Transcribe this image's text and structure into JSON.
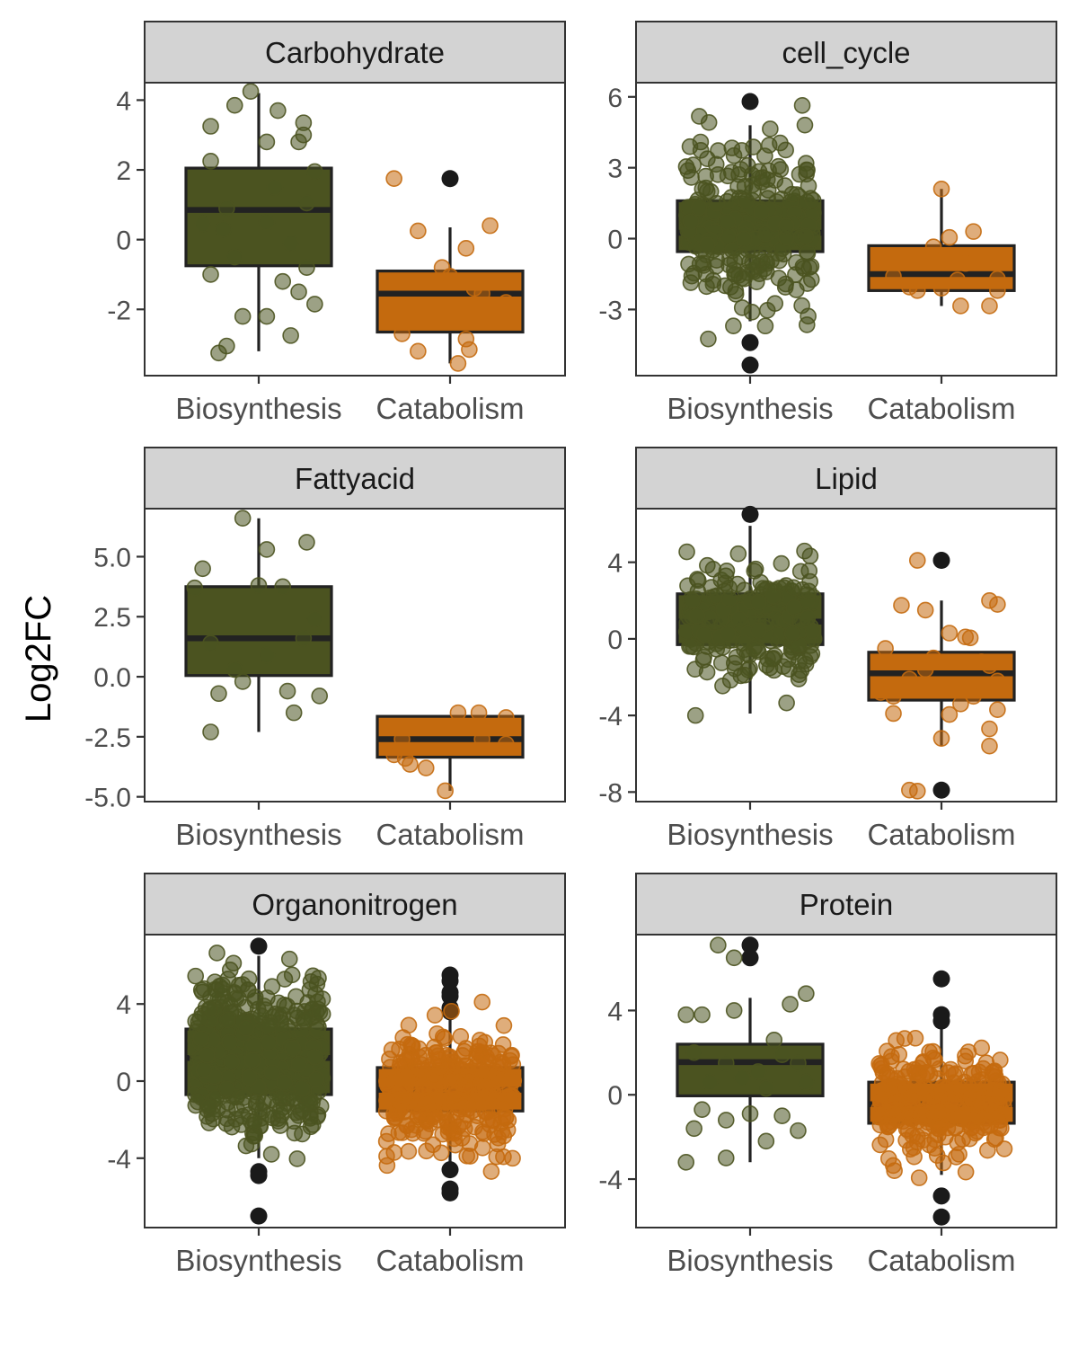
{
  "chart_data": {
    "type": "boxplot",
    "ylabel": "Log2FC",
    "categories": [
      "Biosynthesis",
      "Catabolism"
    ],
    "colors": {
      "Biosynthesis": "#4b5320",
      "Catabolism": "#c46a0e"
    },
    "point_alpha": 0.55,
    "panels": [
      {
        "title": "Carbohydrate",
        "ylim": [
          -3.9,
          4.5
        ],
        "yticks": [
          -2,
          0,
          2,
          4
        ],
        "ytick_labels": [
          "-2",
          "0",
          "2",
          "4"
        ],
        "boxes": [
          {
            "category": "Biosynthesis",
            "lower_whisker": -3.2,
            "q1": -0.75,
            "median": 0.85,
            "q3": 2.05,
            "upper_whisker": 4.2,
            "outliers": [],
            "points": [
              [
                -0.15,
                3.85
              ],
              [
                -0.3,
                3.25
              ],
              [
                0.12,
                3.7
              ],
              [
                0.25,
                2.8
              ],
              [
                -0.05,
                4.25
              ],
              [
                0.28,
                3.35
              ],
              [
                -0.3,
                2.25
              ],
              [
                0.05,
                2.8
              ],
              [
                -0.2,
                0.9
              ],
              [
                0.3,
                1.05
              ],
              [
                0.05,
                0.5
              ],
              [
                -0.35,
                0.45
              ],
              [
                0.2,
                -0.1
              ],
              [
                0.3,
                -0.8
              ],
              [
                -0.3,
                -1.0
              ],
              [
                0.15,
                -1.2
              ],
              [
                -0.1,
                -2.2
              ],
              [
                0.25,
                -1.5
              ],
              [
                0.35,
                -1.85
              ],
              [
                -0.25,
                -3.25
              ],
              [
                -0.2,
                -3.05
              ],
              [
                0.05,
                -2.2
              ],
              [
                0.2,
                -2.75
              ],
              [
                0.35,
                1.95
              ],
              [
                0.1,
                1.5
              ],
              [
                -0.15,
                -0.5
              ],
              [
                0.28,
                3.0
              ],
              [
                -0.22,
                0.3
              ]
            ]
          },
          {
            "category": "Catabolism",
            "lower_whisker": -3.55,
            "q1": -2.65,
            "median": -1.55,
            "q3": -0.9,
            "upper_whisker": 0.35,
            "outliers": [
              1.75
            ],
            "points": [
              [
                -0.35,
                1.75
              ],
              [
                -0.2,
                0.25
              ],
              [
                0.25,
                0.4
              ],
              [
                0.1,
                -0.25
              ],
              [
                -0.05,
                -0.8
              ],
              [
                0.0,
                -1.05
              ],
              [
                0.15,
                -1.4
              ],
              [
                0.35,
                -1.8
              ],
              [
                -0.3,
                -2.7
              ],
              [
                0.1,
                -2.85
              ],
              [
                0.12,
                -3.15
              ],
              [
                -0.2,
                -3.2
              ],
              [
                0.05,
                -3.55
              ],
              [
                -0.25,
                -1.9
              ],
              [
                0.2,
                -1.55
              ]
            ]
          }
        ]
      },
      {
        "title": "cell_cycle",
        "ylim": [
          -5.8,
          6.6
        ],
        "yticks": [
          -3,
          0,
          3,
          6
        ],
        "ytick_labels": [
          "-3",
          "0",
          "3",
          "6"
        ],
        "boxes": [
          {
            "category": "Biosynthesis",
            "lower_whisker": -3.5,
            "q1": -0.55,
            "median": 0.25,
            "q3": 1.6,
            "upper_whisker": 4.8,
            "outliers": [
              5.8,
              -4.4,
              -5.35
            ],
            "n_points": 300,
            "spread": 1.6,
            "center": 0.4,
            "points_min": -5.4,
            "points_max": 5.8
          },
          {
            "category": "Catabolism",
            "lower_whisker": -2.85,
            "q1": -2.2,
            "median": -1.5,
            "q3": -0.3,
            "upper_whisker": 2.1,
            "outliers": [],
            "points": [
              [
                0.0,
                2.1
              ],
              [
                0.2,
                0.3
              ],
              [
                0.05,
                0.05
              ],
              [
                -0.05,
                -0.35
              ],
              [
                0.15,
                -1.05
              ],
              [
                -0.3,
                -1.6
              ],
              [
                0.35,
                -1.7
              ],
              [
                0.1,
                -1.75
              ],
              [
                -0.2,
                -2.05
              ],
              [
                0.0,
                -2.1
              ],
              [
                0.35,
                -2.2
              ],
              [
                -0.15,
                -2.2
              ],
              [
                0.3,
                -2.85
              ],
              [
                0.12,
                -2.85
              ]
            ]
          }
        ]
      },
      {
        "title": "Fattyacid",
        "ylim": [
          -5.2,
          7.0
        ],
        "yticks": [
          -5.0,
          -2.5,
          0.0,
          2.5,
          5.0
        ],
        "ytick_labels": [
          "-5.0",
          "-2.5",
          "0.0",
          "2.5",
          "5.0"
        ],
        "boxes": [
          {
            "category": "Biosynthesis",
            "lower_whisker": -2.3,
            "q1": 0.05,
            "median": 1.6,
            "q3": 3.75,
            "upper_whisker": 6.6,
            "outliers": [],
            "points": [
              [
                -0.1,
                6.6
              ],
              [
                0.3,
                5.6
              ],
              [
                0.05,
                5.3
              ],
              [
                -0.35,
                4.5
              ],
              [
                -0.4,
                3.7
              ],
              [
                0.15,
                3.75
              ],
              [
                0.0,
                3.8
              ],
              [
                0.35,
                2.4
              ],
              [
                -0.3,
                1.4
              ],
              [
                0.05,
                0.9
              ],
              [
                -0.15,
                0.3
              ],
              [
                -0.1,
                -0.2
              ],
              [
                0.18,
                -0.6
              ],
              [
                0.38,
                -0.8
              ],
              [
                -0.25,
                -0.7
              ],
              [
                0.22,
                -1.5
              ],
              [
                -0.3,
                -2.3
              ],
              [
                0.28,
                1.6
              ]
            ]
          },
          {
            "category": "Catabolism",
            "lower_whisker": -4.75,
            "q1": -3.35,
            "median": -2.6,
            "q3": -1.65,
            "upper_whisker": -1.65,
            "outliers": [],
            "points": [
              [
                0.05,
                -1.5
              ],
              [
                0.18,
                -1.5
              ],
              [
                0.35,
                -1.7
              ],
              [
                -0.3,
                -2.6
              ],
              [
                0.35,
                -2.8
              ],
              [
                0.2,
                -2.6
              ],
              [
                -0.35,
                -3.25
              ],
              [
                -0.28,
                -3.4
              ],
              [
                -0.25,
                -3.65
              ],
              [
                -0.15,
                -3.8
              ],
              [
                -0.03,
                -4.75
              ]
            ]
          }
        ]
      },
      {
        "title": "Lipid",
        "ylim": [
          -8.5,
          6.8
        ],
        "yticks": [
          -8,
          -4,
          0,
          4
        ],
        "ytick_labels": [
          "-8",
          "-4",
          "0",
          "4"
        ],
        "boxes": [
          {
            "category": "Biosynthesis",
            "lower_whisker": -3.9,
            "q1": -0.3,
            "median": 0.9,
            "q3": 2.35,
            "upper_whisker": 5.9,
            "outliers": [
              6.5
            ],
            "n_points": 250,
            "spread": 1.5,
            "center": 0.95,
            "points_min": -4.0,
            "points_max": 6.5
          },
          {
            "category": "Catabolism",
            "lower_whisker": -5.6,
            "q1": -3.2,
            "median": -1.8,
            "q3": -0.7,
            "upper_whisker": 2.0,
            "outliers": [
              4.1,
              -7.9
            ],
            "points": [
              [
                -0.15,
                4.1
              ],
              [
                -0.25,
                1.75
              ],
              [
                -0.1,
                1.5
              ],
              [
                0.3,
                2.0
              ],
              [
                0.35,
                1.8
              ],
              [
                0.05,
                0.3
              ],
              [
                0.15,
                0.1
              ],
              [
                0.18,
                0.05
              ],
              [
                -0.35,
                -0.5
              ],
              [
                -0.38,
                -2.8
              ],
              [
                -0.3,
                -3.0
              ],
              [
                -0.3,
                -3.9
              ],
              [
                0.05,
                -3.95
              ],
              [
                0.12,
                -3.4
              ],
              [
                0.3,
                -4.7
              ],
              [
                0.35,
                -3.7
              ],
              [
                0.0,
                -5.2
              ],
              [
                0.3,
                -5.6
              ],
              [
                -0.2,
                -7.9
              ],
              [
                -0.15,
                -7.95
              ],
              [
                0.35,
                -2.2
              ],
              [
                -0.1,
                -1.6
              ],
              [
                0.25,
                -1.2
              ],
              [
                0.1,
                -2.6
              ],
              [
                -0.2,
                -2.1
              ],
              [
                0.2,
                -3.0
              ],
              [
                -0.05,
                -1.0
              ],
              [
                0.3,
                -1.4
              ]
            ]
          }
        ]
      },
      {
        "title": "Organonitrogen",
        "ylim": [
          -7.6,
          7.6
        ],
        "yticks": [
          -4,
          0,
          4
        ],
        "ytick_labels": [
          "-4",
          "0",
          "4"
        ],
        "boxes": [
          {
            "category": "Biosynthesis",
            "lower_whisker": -4.0,
            "q1": -0.7,
            "median": 1.2,
            "q3": 2.7,
            "upper_whisker": 6.5,
            "outliers": [
              7.0,
              -4.7,
              -4.9,
              -7.0
            ],
            "n_points": 600,
            "spread": 1.9,
            "center": 1.1,
            "points_min": -7.0,
            "points_max": 7.1
          },
          {
            "category": "Catabolism",
            "lower_whisker": -4.6,
            "q1": -1.55,
            "median": -0.45,
            "q3": 0.7,
            "upper_whisker": 4.4,
            "outliers": [
              5.5,
              5.2,
              4.6,
              4.4,
              3.8,
              3.6,
              -4.6,
              -5.6,
              -5.8
            ],
            "n_points": 320,
            "spread": 1.5,
            "center": -0.5,
            "points_min": -5.8,
            "points_max": 5.5
          }
        ]
      },
      {
        "title": "Protein",
        "ylim": [
          -6.3,
          7.6
        ],
        "yticks": [
          -4,
          0,
          4
        ],
        "ytick_labels": [
          "-4",
          "0",
          "4"
        ],
        "boxes": [
          {
            "category": "Biosynthesis",
            "lower_whisker": -3.2,
            "q1": -0.05,
            "median": 1.55,
            "q3": 2.4,
            "upper_whisker": 4.6,
            "outliers": [
              7.1,
              6.5
            ],
            "points": [
              [
                -0.2,
                7.1
              ],
              [
                -0.1,
                6.5
              ],
              [
                0.25,
                4.3
              ],
              [
                0.35,
                4.8
              ],
              [
                -0.3,
                3.8
              ],
              [
                -0.4,
                3.8
              ],
              [
                -0.1,
                4.0
              ],
              [
                0.15,
                2.6
              ],
              [
                -0.35,
                2.0
              ],
              [
                -0.15,
                1.5
              ],
              [
                0.3,
                1.5
              ],
              [
                0.05,
                1.1
              ],
              [
                -0.25,
                0.6
              ],
              [
                0.1,
                0.3
              ],
              [
                -0.3,
                -0.7
              ],
              [
                0.0,
                -0.9
              ],
              [
                0.2,
                -1.0
              ],
              [
                -0.15,
                -1.2
              ],
              [
                0.3,
                -1.7
              ],
              [
                -0.35,
                -1.6
              ],
              [
                0.1,
                -2.2
              ],
              [
                -0.15,
                -3.0
              ],
              [
                -0.4,
                -3.2
              ],
              [
                0.35,
                0.6
              ],
              [
                -0.05,
                0.8
              ],
              [
                0.2,
                1.9
              ]
            ]
          },
          {
            "category": "Catabolism",
            "lower_whisker": -3.8,
            "q1": -1.35,
            "median": -0.45,
            "q3": 0.6,
            "upper_whisker": 3.6,
            "outliers": [
              5.5,
              3.8,
              3.5,
              -4.8,
              -5.8
            ],
            "n_points": 300,
            "spread": 1.2,
            "center": -0.4,
            "points_min": -5.8,
            "points_max": 5.5
          }
        ]
      }
    ]
  }
}
